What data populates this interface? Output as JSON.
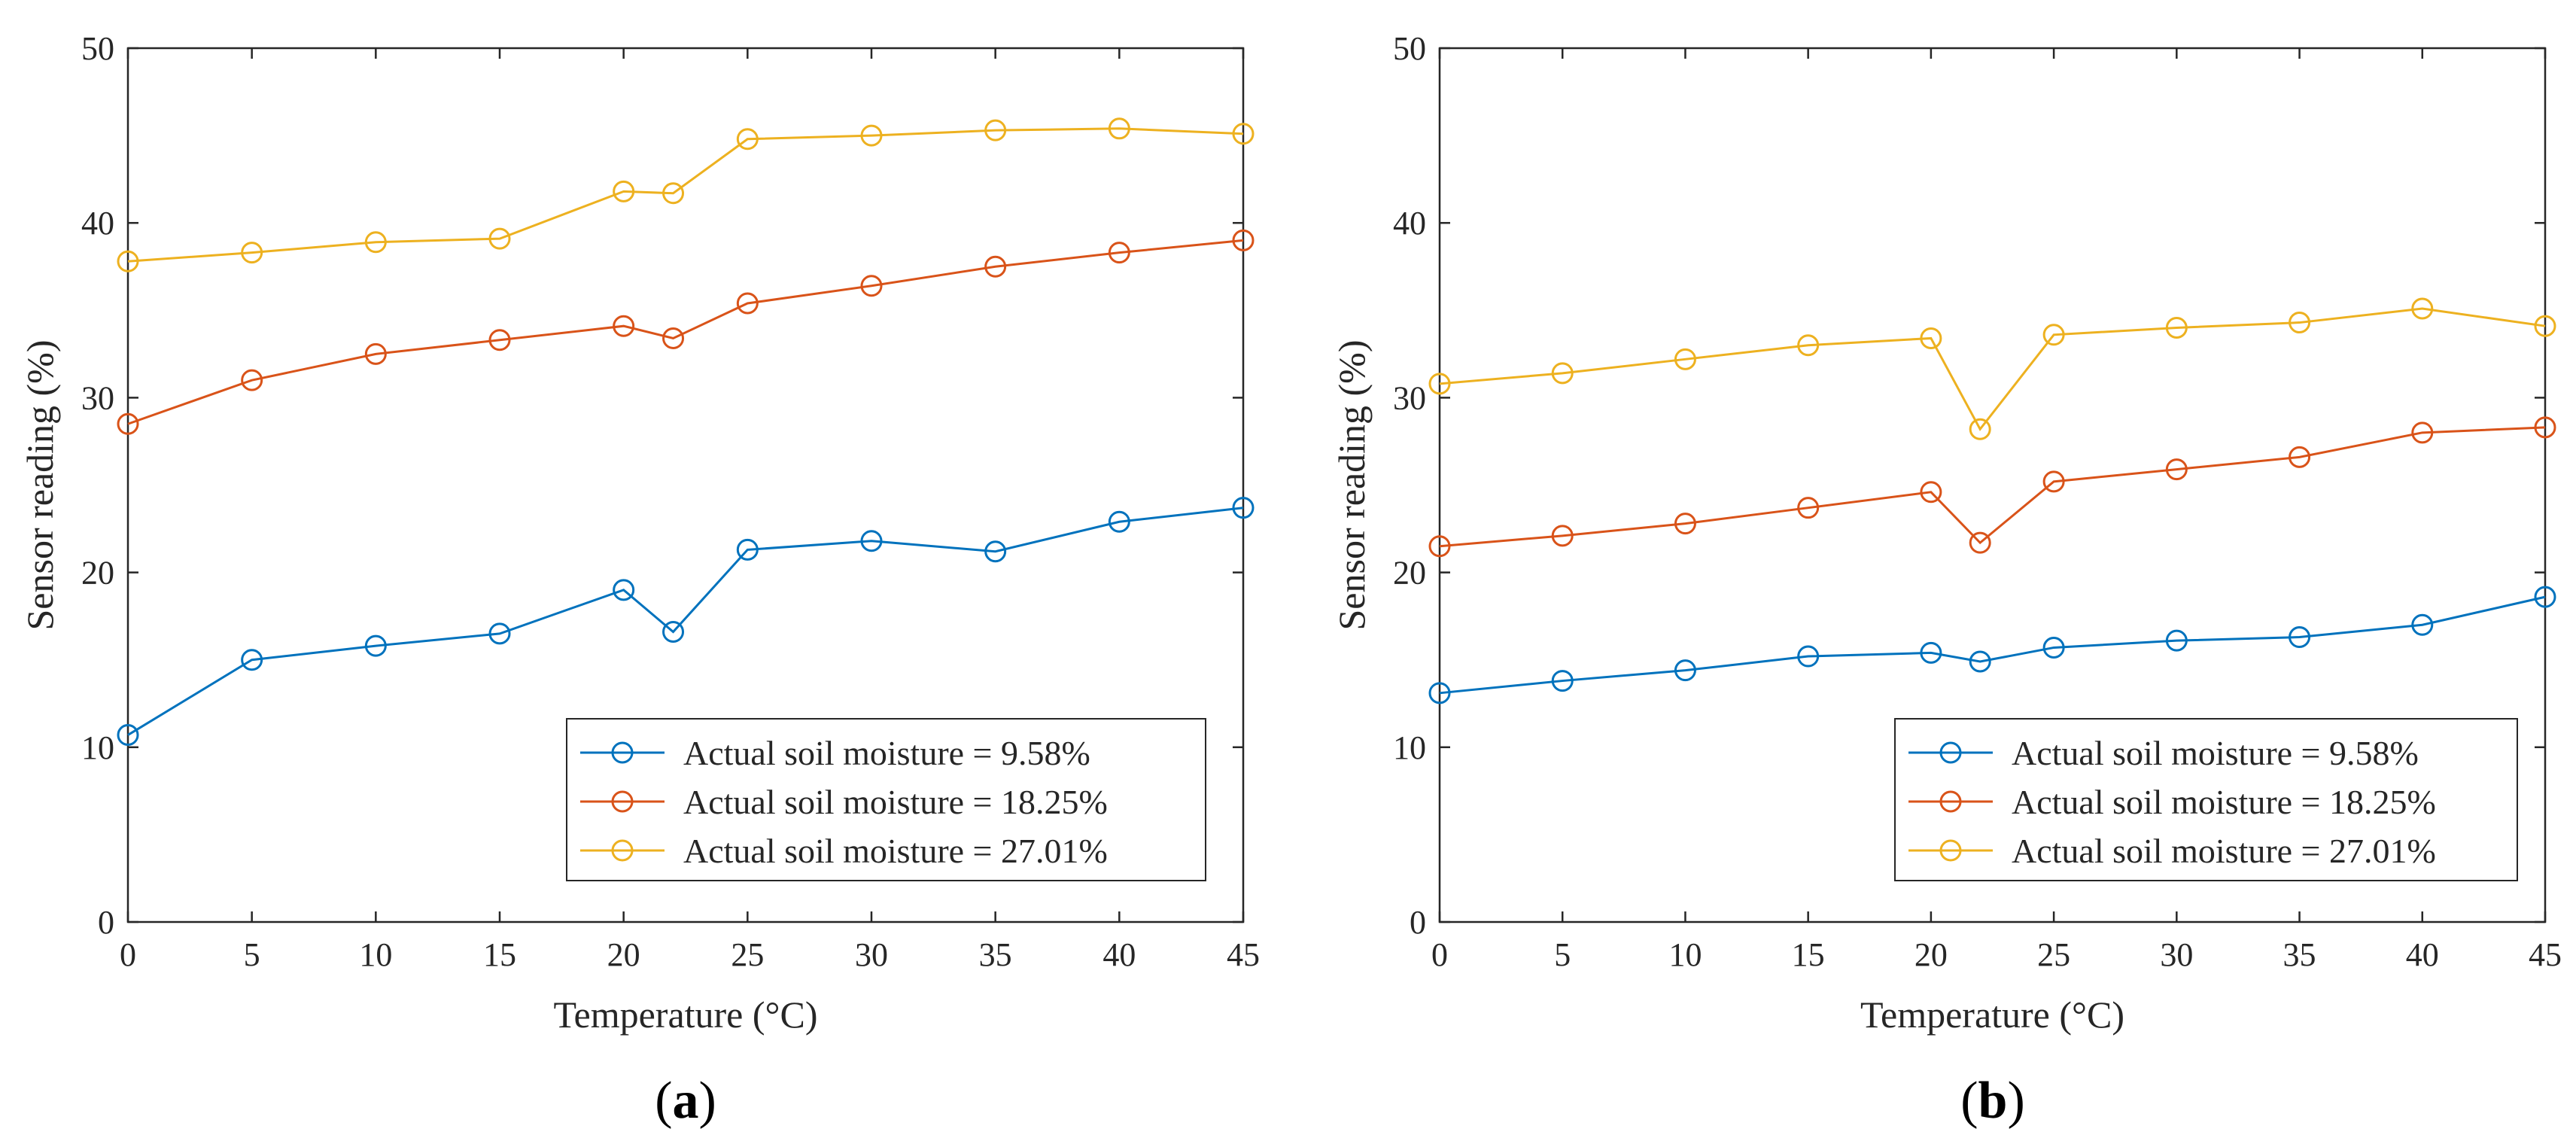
{
  "chart_data": [
    {
      "type": "line",
      "panel_label": "a",
      "xlabel": "Temperature (°C)",
      "ylabel": "Sensor reading (%)",
      "xlim": [
        0,
        45
      ],
      "ylim": [
        0,
        50
      ],
      "xticks": [
        0,
        5,
        10,
        15,
        20,
        25,
        30,
        35,
        40,
        45
      ],
      "yticks": [
        0,
        10,
        20,
        30,
        40,
        50
      ],
      "grid": false,
      "legend_position": "bottom-right",
      "x": [
        0,
        5,
        10,
        15,
        20,
        22,
        25,
        30,
        35,
        40,
        45
      ],
      "series": [
        {
          "name": "Actual soil moisture = 9.58%",
          "color": "#0072BD",
          "marker": "circle",
          "values": [
            10.7,
            15.0,
            15.8,
            16.5,
            19.0,
            16.6,
            21.3,
            21.8,
            21.2,
            22.9,
            23.7
          ]
        },
        {
          "name": "Actual soil moisture = 18.25%",
          "color": "#D95319",
          "marker": "circle",
          "values": [
            28.5,
            31.0,
            32.5,
            33.3,
            34.1,
            33.4,
            35.4,
            36.4,
            37.5,
            38.3,
            39.0
          ]
        },
        {
          "name": "Actual soil moisture = 27.01%",
          "color": "#EDB120",
          "marker": "circle",
          "values": [
            37.8,
            38.3,
            38.9,
            39.1,
            41.8,
            41.7,
            44.8,
            45.0,
            45.3,
            45.4,
            45.1
          ]
        }
      ]
    },
    {
      "type": "line",
      "panel_label": "b",
      "xlabel": "Temperature (°C)",
      "ylabel": "Sensor reading (%)",
      "xlim": [
        0,
        45
      ],
      "ylim": [
        0,
        50
      ],
      "xticks": [
        0,
        5,
        10,
        15,
        20,
        25,
        30,
        35,
        40,
        45
      ],
      "yticks": [
        0,
        10,
        20,
        30,
        40,
        50
      ],
      "grid": false,
      "legend_position": "bottom-right",
      "x": [
        0,
        5,
        10,
        15,
        20,
        22,
        25,
        30,
        35,
        40,
        45
      ],
      "series": [
        {
          "name": "Actual soil moisture = 9.58%",
          "color": "#0072BD",
          "marker": "circle",
          "values": [
            13.1,
            13.8,
            14.4,
            15.2,
            15.4,
            14.9,
            15.7,
            16.1,
            16.3,
            17.0,
            18.6
          ]
        },
        {
          "name": "Actual soil moisture = 18.25%",
          "color": "#D95319",
          "marker": "circle",
          "values": [
            21.5,
            22.1,
            22.8,
            23.7,
            24.6,
            21.7,
            25.2,
            25.9,
            26.6,
            28.0,
            28.3
          ]
        },
        {
          "name": "Actual soil moisture = 27.01%",
          "color": "#EDB120",
          "marker": "circle",
          "values": [
            30.8,
            31.4,
            32.2,
            33.0,
            33.4,
            28.2,
            33.6,
            34.0,
            34.3,
            35.1,
            34.1
          ]
        }
      ]
    }
  ]
}
